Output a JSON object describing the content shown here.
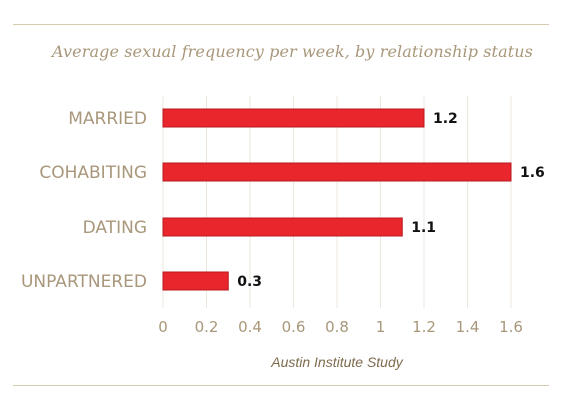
{
  "chart_data": {
    "type": "bar",
    "orientation": "horizontal",
    "title": "Average sexual frequency per week, by relationship status",
    "caption": "Austin Institute Study",
    "categories": [
      "MARRIED",
      "COHABITING",
      "DATING",
      "UNPARTNERED"
    ],
    "values": [
      1.2,
      1.6,
      1.1,
      0.3
    ],
    "data_labels": [
      "1.2",
      "1.6",
      "1.1",
      "0.3"
    ],
    "xlim": [
      0,
      1.6
    ],
    "x_ticks": [
      0,
      0.2,
      0.4,
      0.6,
      0.8,
      1,
      1.2,
      1.4,
      1.6
    ],
    "x_tick_labels": [
      "0",
      "0.2",
      "0.4",
      "0.6",
      "0.8",
      "1",
      "1.2",
      "1.4",
      "1.6"
    ],
    "grid": true,
    "legend": "none",
    "colors": {
      "bar": "#e8262b",
      "bar_border": "#b81a1f",
      "category_label": "#a8977a",
      "tick_label": "#a8977a",
      "data_label": "#111111",
      "grid": "#ece6dd",
      "rule": "#d8c9b2",
      "title": "#a8977a",
      "caption": "#7e6a4d"
    }
  }
}
